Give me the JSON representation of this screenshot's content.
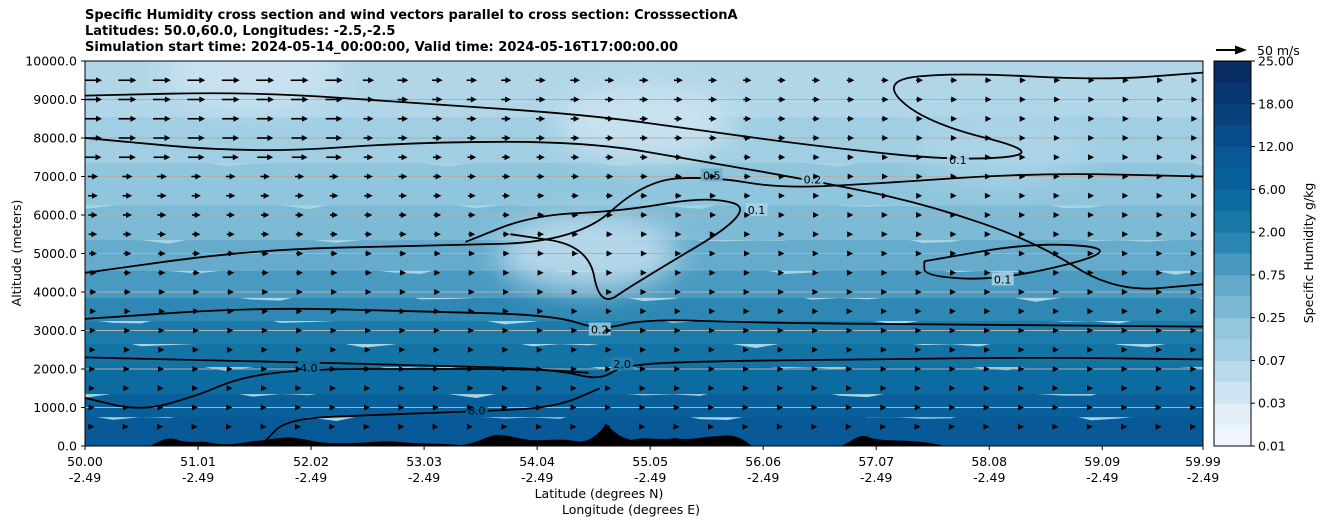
{
  "chart_data": {
    "type": "heatmap",
    "title_lines": [
      "Specific Humidity cross section and wind vectors parallel to cross section: CrosssectionA",
      "Latitudes: 50.0,60.0, Longitudes: -2.5,-2.5",
      "Simulation start time: 2024-05-14_00:00:00, Valid time: 2024-05-16T17:00:00.00"
    ],
    "xlabel": "Latitude (degrees N)",
    "xlabel2": "Longitude (degrees E)",
    "ylabel": "Altitude (meters)",
    "x_ticks": [
      {
        "lat": "50.00",
        "lon": "-2.49"
      },
      {
        "lat": "51.01",
        "lon": "-2.49"
      },
      {
        "lat": "52.02",
        "lon": "-2.49"
      },
      {
        "lat": "53.03",
        "lon": "-2.49"
      },
      {
        "lat": "54.04",
        "lon": "-2.49"
      },
      {
        "lat": "55.05",
        "lon": "-2.49"
      },
      {
        "lat": "56.06",
        "lon": "-2.49"
      },
      {
        "lat": "57.07",
        "lon": "-2.49"
      },
      {
        "lat": "58.08",
        "lon": "-2.49"
      },
      {
        "lat": "59.09",
        "lon": "-2.49"
      },
      {
        "lat": "59.99",
        "lon": "-2.49"
      }
    ],
    "y_ticks": [
      "0.0",
      "1000.0",
      "2000.0",
      "3000.0",
      "4000.0",
      "5000.0",
      "6000.0",
      "7000.0",
      "8000.0",
      "9000.0",
      "10000.0"
    ],
    "ylim": [
      0,
      10000
    ],
    "grid": "horizontal",
    "colorbar": {
      "label": "Specific Humidity g/kg",
      "levels": [
        "0.01",
        "0.03",
        "0.07",
        "0.25",
        "0.75",
        "2.00",
        "6.00",
        "12.00",
        "18.00",
        "25.00"
      ]
    },
    "quiver_key": "50 m/s",
    "humidity_bands": [
      {
        "top_alt": 800,
        "value": 10
      },
      {
        "top_alt": 1400,
        "value": 8
      },
      {
        "top_alt": 2100,
        "value": 5
      },
      {
        "top_alt": 2700,
        "value": 3.5
      },
      {
        "top_alt": 3300,
        "value": 2.5
      },
      {
        "top_alt": 3900,
        "value": 1.6
      },
      {
        "top_alt": 4600,
        "value": 1.0
      },
      {
        "top_alt": 5400,
        "value": 0.6
      },
      {
        "top_alt": 6300,
        "value": 0.35
      },
      {
        "top_alt": 7400,
        "value": 0.22
      },
      {
        "top_alt": 8600,
        "value": 0.12
      },
      {
        "top_alt": 10000,
        "value": 0.07
      }
    ],
    "dry_patches": [
      {
        "lat": 55.0,
        "alt": 8400,
        "value": 0.04
      },
      {
        "lat": 54.5,
        "alt": 5000,
        "value": 0.05
      },
      {
        "lat": 51.5,
        "alt": 9700,
        "value": 0.04
      },
      {
        "lat": 58.2,
        "alt": 7800,
        "value": 0.08
      }
    ],
    "contours": [
      {
        "label": "2.0",
        "points": [
          [
            50.0,
            2300
          ],
          [
            51.5,
            2200
          ],
          [
            53.0,
            2100
          ],
          [
            54.2,
            2000
          ],
          [
            54.6,
            1700
          ],
          [
            54.8,
            2100
          ],
          [
            55.5,
            2200
          ],
          [
            57.0,
            2250
          ],
          [
            58.5,
            2300
          ],
          [
            59.99,
            2250
          ]
        ]
      },
      {
        "label": "4.0",
        "points": [
          [
            50.0,
            1250
          ],
          [
            50.5,
            900
          ],
          [
            51.0,
            1300
          ],
          [
            51.4,
            1800
          ],
          [
            52.0,
            2000
          ],
          [
            53.0,
            2000
          ],
          [
            54.0,
            2000
          ],
          [
            54.5,
            1900
          ]
        ]
      },
      {
        "label": "8.0",
        "points": [
          [
            51.6,
            100
          ],
          [
            51.8,
            700
          ],
          [
            52.5,
            800
          ],
          [
            53.5,
            900
          ],
          [
            54.2,
            1000
          ],
          [
            54.6,
            1500
          ]
        ]
      },
      {
        "label": "0.2",
        "points": [
          [
            50.0,
            3300
          ],
          [
            51.5,
            3600
          ],
          [
            53.0,
            3500
          ],
          [
            54.2,
            3400
          ],
          [
            54.6,
            3000
          ],
          [
            55.0,
            3300
          ],
          [
            56.0,
            3200
          ],
          [
            58.0,
            3150
          ],
          [
            59.99,
            3100
          ]
        ]
      },
      {
        "label": "0.5",
        "points": [
          [
            50.0,
            4500
          ],
          [
            51.5,
            5100
          ],
          [
            53.0,
            5200
          ],
          [
            54.4,
            5300
          ],
          [
            55.0,
            6900
          ],
          [
            55.6,
            7000
          ],
          [
            56.2,
            6700
          ],
          [
            57.0,
            6800
          ],
          [
            58.5,
            7100
          ],
          [
            59.99,
            7000
          ]
        ]
      },
      {
        "label": "0.1",
        "points": [
          [
            53.4,
            5300
          ],
          [
            54.0,
            6000
          ],
          [
            54.8,
            6100
          ],
          [
            55.6,
            6500
          ],
          [
            56.0,
            6100
          ],
          [
            54.9,
            4200
          ],
          [
            54.6,
            3600
          ],
          [
            54.5,
            5200
          ],
          [
            53.8,
            5500
          ]
        ]
      },
      {
        "label": "0.1",
        "points": [
          [
            50.0,
            9100
          ],
          [
            51.5,
            9200
          ],
          [
            53.0,
            8900
          ],
          [
            54.5,
            8600
          ],
          [
            55.5,
            8200
          ],
          [
            56.5,
            7800
          ],
          [
            57.8,
            7400
          ],
          [
            58.6,
            7600
          ],
          [
            57.5,
            8400
          ],
          [
            57.1,
            9500
          ],
          [
            57.8,
            9700
          ],
          [
            59.1,
            9500
          ],
          [
            59.99,
            9700
          ]
        ]
      },
      {
        "label": "0.2",
        "points": [
          [
            50.0,
            8000
          ],
          [
            51.5,
            7600
          ],
          [
            53.0,
            7900
          ],
          [
            54.5,
            7900
          ],
          [
            55.5,
            7400
          ],
          [
            56.5,
            6900
          ],
          [
            57.5,
            6300
          ],
          [
            58.5,
            5300
          ],
          [
            59.2,
            4000
          ],
          [
            59.99,
            4200
          ]
        ]
      },
      {
        "label": "0.1",
        "points": [
          [
            57.5,
            4800
          ],
          [
            58.5,
            5300
          ],
          [
            59.3,
            5100
          ],
          [
            58.2,
            4300
          ],
          [
            57.5,
            4400
          ],
          [
            57.5,
            4800
          ]
        ]
      }
    ]
  }
}
